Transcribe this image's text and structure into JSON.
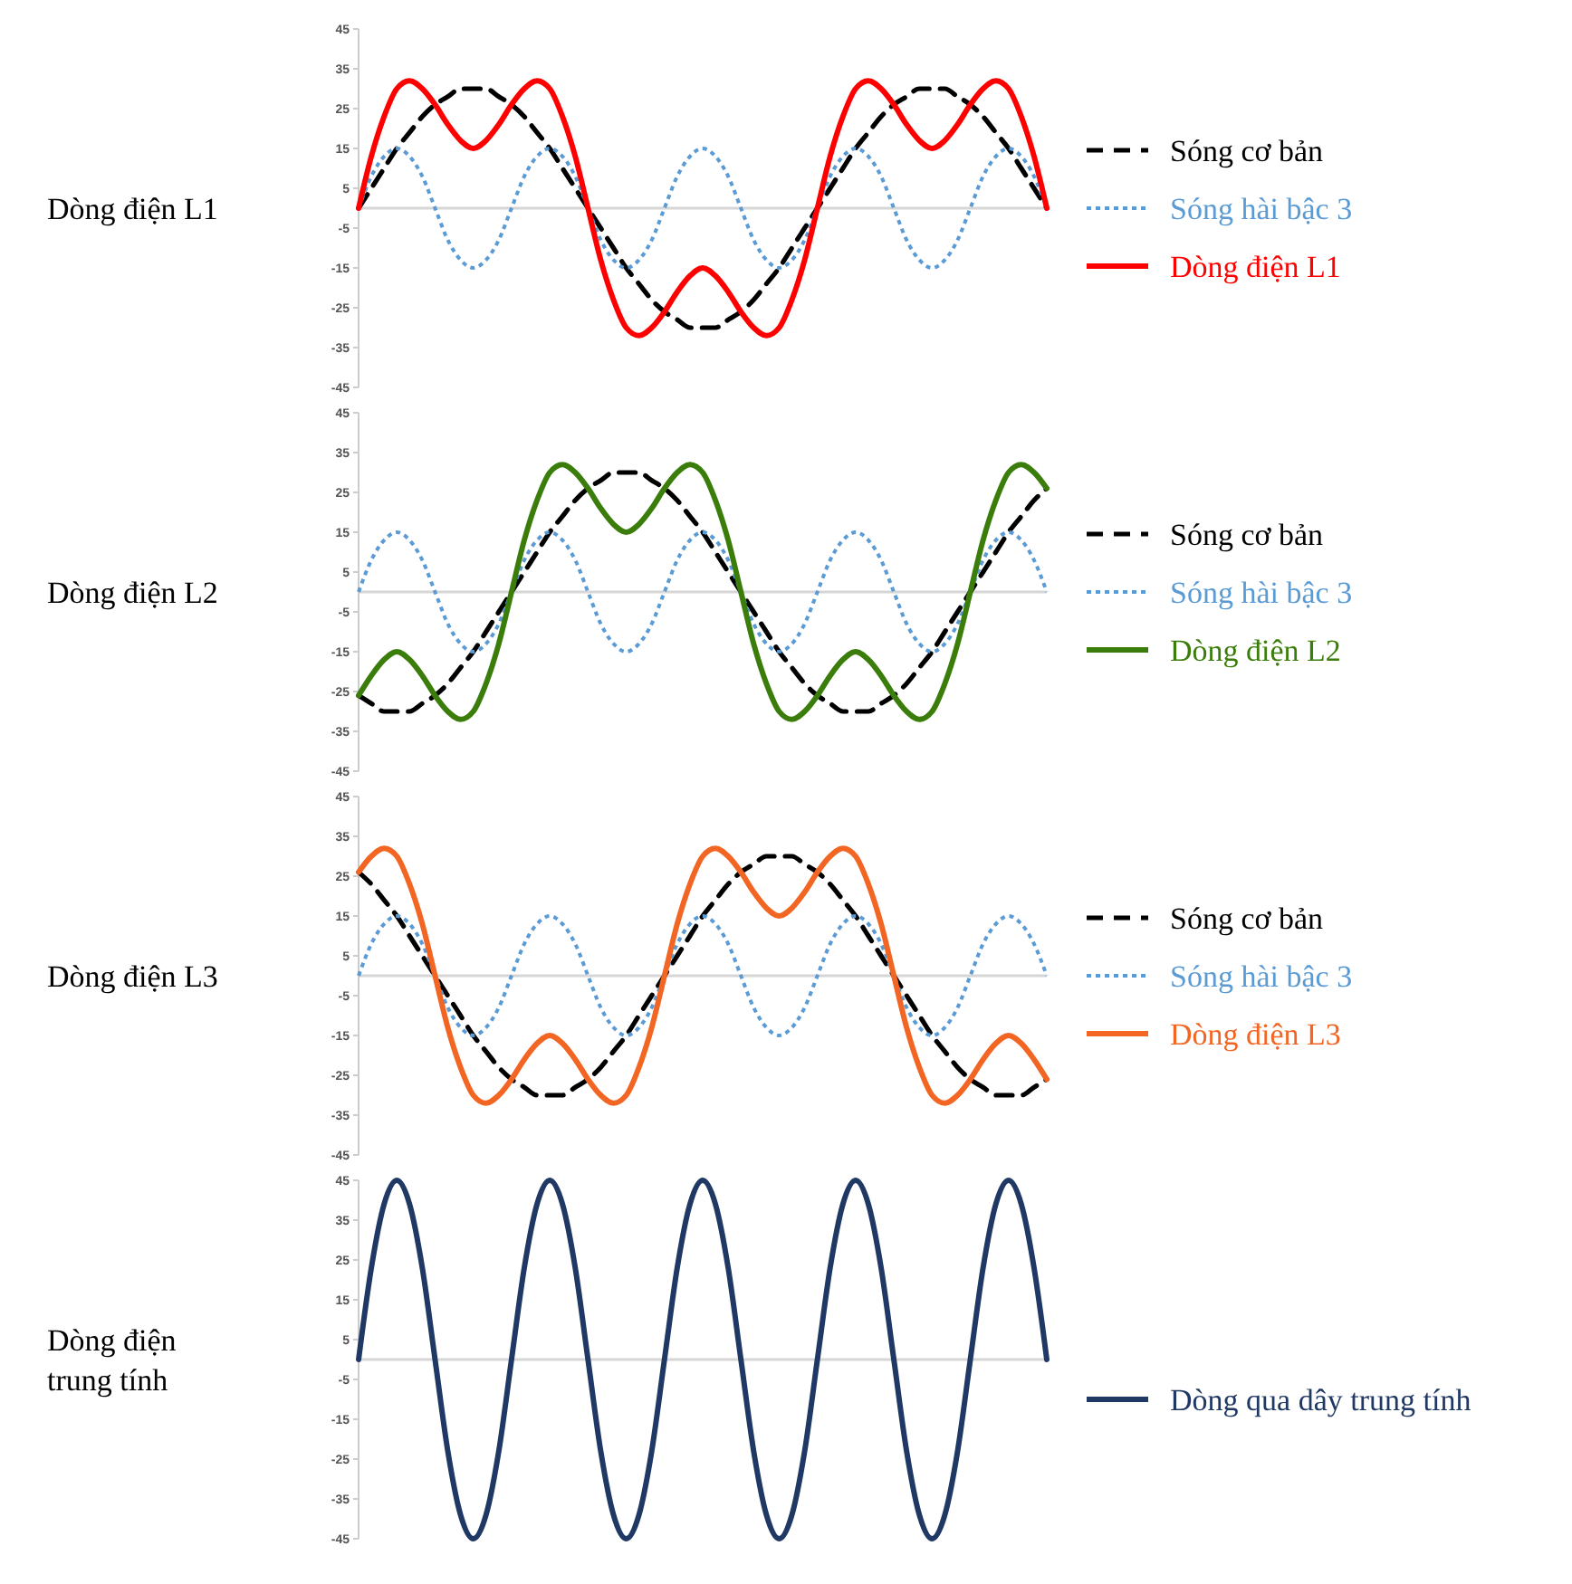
{
  "chart_data": [
    {
      "type": "line",
      "ylabel": "Dòng điện L1",
      "categories": [
        null,
        null,
        null,
        null,
        null,
        null,
        null,
        null,
        null,
        null,
        null,
        null,
        null,
        null,
        null,
        null,
        null,
        null,
        null,
        null,
        null,
        null,
        null,
        null,
        null,
        null,
        null,
        null,
        null,
        null,
        null,
        null,
        null,
        null,
        null,
        null,
        null,
        null,
        null,
        null,
        null,
        null,
        null,
        null,
        null,
        null,
        null,
        null,
        null,
        null,
        null,
        null,
        null,
        null,
        null
      ],
      "ylim": [
        -45,
        45
      ],
      "yticks": [
        -45,
        -35,
        -25,
        -15,
        -5,
        5,
        15,
        25,
        35,
        45
      ],
      "tick_labels": "y",
      "legend": "right",
      "series": [
        {
          "name": "Sóng cơ bản",
          "color": "#000000",
          "line_style": "dashed",
          "values": [
            0,
            5,
            10,
            15,
            19,
            23,
            26,
            28,
            30,
            30,
            30,
            28,
            26,
            23,
            19,
            15,
            10,
            5,
            0,
            -5,
            -10,
            -15,
            -19,
            -23,
            -26,
            -28,
            -30,
            -30,
            -30,
            -28,
            -26,
            -23,
            -19,
            -15,
            -10,
            -5,
            0,
            5,
            10,
            15,
            19,
            23,
            26,
            28,
            30,
            30,
            30,
            28,
            26,
            23,
            19,
            15,
            10,
            5,
            0
          ]
        },
        {
          "name": "Sóng hài bậc 3",
          "color": "#5b9bd5",
          "line_style": "dotted",
          "values": [
            0,
            8,
            13,
            15,
            13,
            8,
            0,
            -8,
            -13,
            -15,
            -13,
            -8,
            0,
            8,
            13,
            15,
            13,
            8,
            0,
            -8,
            -13,
            -15,
            -13,
            -8,
            0,
            8,
            13,
            15,
            13,
            8,
            0,
            -8,
            -13,
            -15,
            -13,
            -8,
            0,
            8,
            13,
            15,
            13,
            8,
            0,
            -8,
            -13,
            -15,
            -13,
            -8,
            0,
            8,
            13,
            15,
            13,
            8,
            0
          ]
        },
        {
          "name": "Dòng điện L1",
          "color": "#ff0000",
          "line_style": "solid",
          "values": [
            0,
            13,
            23,
            30,
            32,
            30,
            26,
            21,
            17,
            15,
            17,
            21,
            26,
            30,
            32,
            30,
            23,
            13,
            0,
            -13,
            -23,
            -30,
            -32,
            -30,
            -26,
            -21,
            -17,
            -15,
            -17,
            -21,
            -26,
            -30,
            -32,
            -30,
            -23,
            -13,
            0,
            13,
            23,
            30,
            32,
            30,
            26,
            21,
            17,
            15,
            17,
            21,
            26,
            30,
            32,
            30,
            23,
            13,
            0
          ]
        }
      ]
    },
    {
      "type": "line",
      "ylabel": "Dòng điện L2",
      "categories": [
        null,
        null,
        null,
        null,
        null,
        null,
        null,
        null,
        null,
        null,
        null,
        null,
        null,
        null,
        null,
        null,
        null,
        null,
        null,
        null,
        null,
        null,
        null,
        null,
        null,
        null,
        null,
        null,
        null,
        null,
        null,
        null,
        null,
        null,
        null,
        null,
        null,
        null,
        null,
        null,
        null,
        null,
        null,
        null,
        null,
        null,
        null,
        null,
        null,
        null,
        null,
        null,
        null,
        null,
        null
      ],
      "ylim": [
        -45,
        45
      ],
      "yticks": [
        -45,
        -35,
        -25,
        -15,
        -5,
        5,
        15,
        25,
        35,
        45
      ],
      "tick_labels": "y",
      "legend": "right",
      "series": [
        {
          "name": "Sóng cơ bản",
          "color": "#000000",
          "line_style": "dashed",
          "values": [
            -26,
            -28,
            -30,
            -30,
            -30,
            -28,
            -26,
            -23,
            -19,
            -15,
            -10,
            -5,
            0,
            5,
            10,
            15,
            19,
            23,
            26,
            28,
            30,
            30,
            30,
            28,
            26,
            23,
            19,
            15,
            10,
            5,
            0,
            -5,
            -10,
            -15,
            -19,
            -23,
            -26,
            -28,
            -30,
            -30,
            -30,
            -28,
            -26,
            -23,
            -19,
            -15,
            -10,
            -5,
            0,
            5,
            10,
            15,
            19,
            23,
            26
          ]
        },
        {
          "name": "Sóng hài bậc 3",
          "color": "#5b9bd5",
          "line_style": "dotted",
          "values": [
            0,
            8,
            13,
            15,
            13,
            8,
            0,
            -8,
            -13,
            -15,
            -13,
            -8,
            0,
            8,
            13,
            15,
            13,
            8,
            0,
            -8,
            -13,
            -15,
            -13,
            -8,
            0,
            8,
            13,
            15,
            13,
            8,
            0,
            -8,
            -13,
            -15,
            -13,
            -8,
            0,
            8,
            13,
            15,
            13,
            8,
            0,
            -8,
            -13,
            -15,
            -13,
            -8,
            0,
            8,
            13,
            15,
            13,
            8,
            0
          ]
        },
        {
          "name": "Dòng điện L2",
          "color": "#3a7d0a",
          "line_style": "solid",
          "values": [
            -26,
            -21,
            -17,
            -15,
            -17,
            -21,
            -26,
            -30,
            -32,
            -30,
            -23,
            -13,
            0,
            13,
            23,
            30,
            32,
            30,
            26,
            21,
            17,
            15,
            17,
            21,
            26,
            30,
            32,
            30,
            23,
            13,
            0,
            -13,
            -23,
            -30,
            -32,
            -30,
            -26,
            -21,
            -17,
            -15,
            -17,
            -21,
            -26,
            -30,
            -32,
            -30,
            -23,
            -13,
            0,
            13,
            23,
            30,
            32,
            30,
            26
          ]
        }
      ]
    },
    {
      "type": "line",
      "ylabel": "Dòng điện L3",
      "categories": [
        null,
        null,
        null,
        null,
        null,
        null,
        null,
        null,
        null,
        null,
        null,
        null,
        null,
        null,
        null,
        null,
        null,
        null,
        null,
        null,
        null,
        null,
        null,
        null,
        null,
        null,
        null,
        null,
        null,
        null,
        null,
        null,
        null,
        null,
        null,
        null,
        null,
        null,
        null,
        null,
        null,
        null,
        null,
        null,
        null,
        null,
        null,
        null,
        null,
        null,
        null,
        null,
        null,
        null,
        null
      ],
      "ylim": [
        -45,
        45
      ],
      "yticks": [
        -45,
        -35,
        -25,
        -15,
        -5,
        5,
        15,
        25,
        35,
        45
      ],
      "tick_labels": "y",
      "legend": "right",
      "series": [
        {
          "name": "Sóng cơ bản",
          "color": "#000000",
          "line_style": "dashed",
          "values": [
            26,
            23,
            19,
            15,
            10,
            5,
            0,
            -5,
            -10,
            -15,
            -19,
            -23,
            -26,
            -28,
            -30,
            -30,
            -30,
            -28,
            -26,
            -23,
            -19,
            -15,
            -10,
            -5,
            0,
            5,
            10,
            15,
            19,
            23,
            26,
            28,
            30,
            30,
            30,
            28,
            26,
            23,
            19,
            15,
            10,
            5,
            0,
            -5,
            -10,
            -15,
            -19,
            -23,
            -26,
            -28,
            -30,
            -30,
            -30,
            -28,
            -26
          ]
        },
        {
          "name": "Sóng hài bậc 3",
          "color": "#5b9bd5",
          "line_style": "dotted",
          "values": [
            0,
            8,
            13,
            15,
            13,
            8,
            0,
            -8,
            -13,
            -15,
            -13,
            -8,
            0,
            8,
            13,
            15,
            13,
            8,
            0,
            -8,
            -13,
            -15,
            -13,
            -8,
            0,
            8,
            13,
            15,
            13,
            8,
            0,
            -8,
            -13,
            -15,
            -13,
            -8,
            0,
            8,
            13,
            15,
            13,
            8,
            0,
            -8,
            -13,
            -15,
            -13,
            -8,
            0,
            8,
            13,
            15,
            13,
            8,
            0
          ]
        },
        {
          "name": "Dòng điện L3",
          "color": "#f26522",
          "line_style": "solid",
          "values": [
            26,
            30,
            32,
            30,
            23,
            13,
            0,
            -13,
            -23,
            -30,
            -32,
            -30,
            -26,
            -21,
            -17,
            -15,
            -17,
            -21,
            -26,
            -30,
            -32,
            -30,
            -23,
            -13,
            0,
            13,
            23,
            30,
            32,
            30,
            26,
            21,
            17,
            15,
            17,
            21,
            26,
            30,
            32,
            30,
            23,
            13,
            0,
            -13,
            -23,
            -30,
            -32,
            -30,
            -26,
            -21,
            -17,
            -15,
            -17,
            -21,
            -26
          ]
        }
      ]
    },
    {
      "type": "line",
      "ylabel": "Dòng điện trung tính",
      "categories": [
        null,
        null,
        null,
        null,
        null,
        null,
        null,
        null,
        null,
        null,
        null,
        null,
        null,
        null,
        null,
        null,
        null,
        null,
        null,
        null,
        null,
        null,
        null,
        null,
        null,
        null,
        null,
        null,
        null,
        null,
        null,
        null,
        null,
        null,
        null,
        null,
        null,
        null,
        null,
        null,
        null,
        null,
        null,
        null,
        null,
        null,
        null,
        null,
        null,
        null,
        null,
        null,
        null,
        null,
        null
      ],
      "ylim": [
        -45,
        45
      ],
      "yticks": [
        -45,
        -35,
        -25,
        -15,
        -5,
        5,
        15,
        25,
        35,
        45
      ],
      "tick_labels": "y",
      "legend": "right",
      "series": [
        {
          "name": "Dòng qua dây trung tính",
          "color": "#1f3864",
          "line_style": "solid",
          "values": [
            0,
            23,
            39,
            45,
            39,
            23,
            0,
            -23,
            -39,
            -45,
            -39,
            -23,
            0,
            23,
            39,
            45,
            39,
            23,
            0,
            -23,
            -39,
            -45,
            -39,
            -23,
            0,
            23,
            39,
            45,
            39,
            23,
            0,
            -23,
            -39,
            -45,
            -39,
            -23,
            0,
            23,
            39,
            45,
            39,
            23,
            0,
            -23,
            -39,
            -45,
            -39,
            -23,
            0,
            23,
            39,
            45,
            39,
            23,
            0
          ]
        }
      ]
    }
  ]
}
